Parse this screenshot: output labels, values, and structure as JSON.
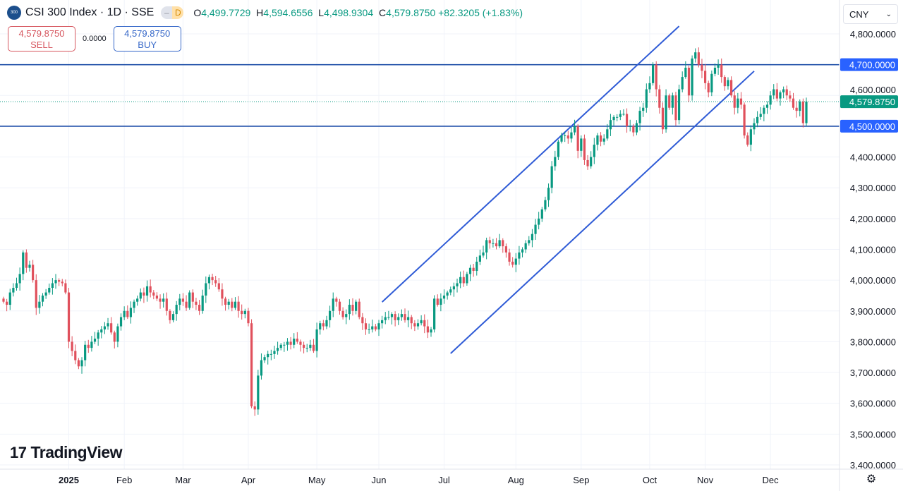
{
  "header": {
    "symbol_logo_text": "300",
    "title": "CSI 300 Index · 1D · SSE",
    "pill_left": "–",
    "pill_right": "D",
    "ohlc": {
      "o_label": "O",
      "o": "4,499.7729",
      "h_label": "H",
      "h": "4,594.6556",
      "l_label": "L",
      "l": "4,498.9304",
      "c_label": "C",
      "c": "4,579.8750",
      "change": "+82.3205 (+1.83%)"
    }
  },
  "trade": {
    "sell_price": "4,579.8750",
    "sell_label": "SELL",
    "spread": "0.0000",
    "buy_price": "4,579.8750",
    "buy_label": "BUY"
  },
  "currency": "CNY",
  "brand": "TradingView",
  "colors": {
    "up": "#089981",
    "down": "#e0505c",
    "drawing": "#2f5bd6",
    "hline": "#1f4fa8",
    "last": "#089981",
    "label_blue": "#2962ff"
  },
  "chart_data": {
    "type": "candlestick",
    "title": "CSI 300 Index · 1D · SSE",
    "ylim": [
      3400,
      4820
    ],
    "y_ticks": [
      "4,800.0000",
      "4,600.0000",
      "4,400.0000",
      "4,300.0000",
      "4,200.0000",
      "4,100.0000",
      "4,000.0000",
      "3,900.0000",
      "3,800.0000",
      "3,700.0000",
      "3,600.0000",
      "3,500.0000",
      "3,400.0000"
    ],
    "y_tick_values": [
      4800,
      4600,
      4400,
      4300,
      4200,
      4100,
      4000,
      3900,
      3800,
      3700,
      3600,
      3500,
      3400
    ],
    "x_labels": [
      {
        "label": "2025",
        "index": 20,
        "bold": true
      },
      {
        "label": "Feb",
        "index": 37
      },
      {
        "label": "Mar",
        "index": 55
      },
      {
        "label": "Apr",
        "index": 75
      },
      {
        "label": "May",
        "index": 96
      },
      {
        "label": "Jun",
        "index": 115
      },
      {
        "label": "Jul",
        "index": 135
      },
      {
        "label": "Aug",
        "index": 157
      },
      {
        "label": "Sep",
        "index": 177
      },
      {
        "label": "Oct",
        "index": 198
      },
      {
        "label": "Nov",
        "index": 215
      },
      {
        "label": "Dec",
        "index": 235
      }
    ],
    "first_open": 3940,
    "closes": [
      3930,
      3920,
      3960,
      3975,
      3990,
      4020,
      4090,
      4040,
      4050,
      4000,
      3910,
      3930,
      3950,
      3960,
      3975,
      3990,
      4000,
      3995,
      3990,
      3960,
      3800,
      3770,
      3740,
      3720,
      3740,
      3790,
      3780,
      3800,
      3810,
      3830,
      3840,
      3850,
      3860,
      3830,
      3800,
      3850,
      3880,
      3900,
      3880,
      3910,
      3930,
      3940,
      3960,
      3950,
      3980,
      3960,
      3950,
      3940,
      3930,
      3940,
      3900,
      3870,
      3890,
      3920,
      3940,
      3930,
      3910,
      3960,
      3930,
      3920,
      3900,
      3950,
      3990,
      4010,
      4000,
      3990,
      3970,
      3940,
      3920,
      3930,
      3910,
      3930,
      3900,
      3890,
      3900,
      3860,
      3590,
      3580,
      3690,
      3740,
      3750,
      3760,
      3760,
      3770,
      3780,
      3790,
      3790,
      3800,
      3790,
      3810,
      3800,
      3790,
      3780,
      3780,
      3790,
      3770,
      3840,
      3860,
      3850,
      3870,
      3900,
      3940,
      3930,
      3900,
      3880,
      3890,
      3920,
      3900,
      3930,
      3880,
      3860,
      3840,
      3840,
      3850,
      3840,
      3860,
      3870,
      3880,
      3880,
      3890,
      3870,
      3880,
      3890,
      3870,
      3880,
      3860,
      3850,
      3860,
      3870,
      3850,
      3830,
      3840,
      3940,
      3920,
      3940,
      3950,
      3960,
      3970,
      3980,
      3990,
      4010,
      3990,
      4020,
      4040,
      4030,
      4060,
      4080,
      4090,
      4130,
      4120,
      4120,
      4110,
      4130,
      4110,
      4090,
      4060,
      4050,
      4070,
      4090,
      4100,
      4120,
      4130,
      4150,
      4180,
      4200,
      4230,
      4260,
      4300,
      4370,
      4400,
      4450,
      4470,
      4470,
      4460,
      4480,
      4500,
      4420,
      4460,
      4390,
      4370,
      4400,
      4440,
      4470,
      4450,
      4460,
      4490,
      4520,
      4530,
      4530,
      4540,
      4540,
      4500,
      4500,
      4480,
      4510,
      4550,
      4560,
      4620,
      4640,
      4700,
      4620,
      4560,
      4490,
      4600,
      4560,
      4600,
      4520,
      4620,
      4660,
      4690,
      4600,
      4720,
      4740,
      4700,
      4680,
      4640,
      4610,
      4670,
      4690,
      4700,
      4660,
      4630,
      4650,
      4600,
      4560,
      4590,
      4570,
      4470,
      4440,
      4490,
      4510,
      4530,
      4540,
      4560,
      4570,
      4600,
      4620,
      4590,
      4610,
      4620,
      4600,
      4590,
      4560,
      4550,
      4580,
      4510,
      4579.875
    ],
    "horizontal_lines": [
      {
        "price": 4700,
        "label": "4,700.0000"
      },
      {
        "price": 4500,
        "label": "4,500.0000"
      }
    ],
    "last_price": {
      "price": 4579.875,
      "label": "4,579.8750"
    },
    "channel_lines": [
      {
        "from": {
          "index": 116,
          "price": 3929
        },
        "to": {
          "index": 207,
          "price": 4825
        }
      },
      {
        "from": {
          "index": 137,
          "price": 3762
        },
        "to": {
          "index": 230,
          "price": 4679
        }
      }
    ]
  }
}
